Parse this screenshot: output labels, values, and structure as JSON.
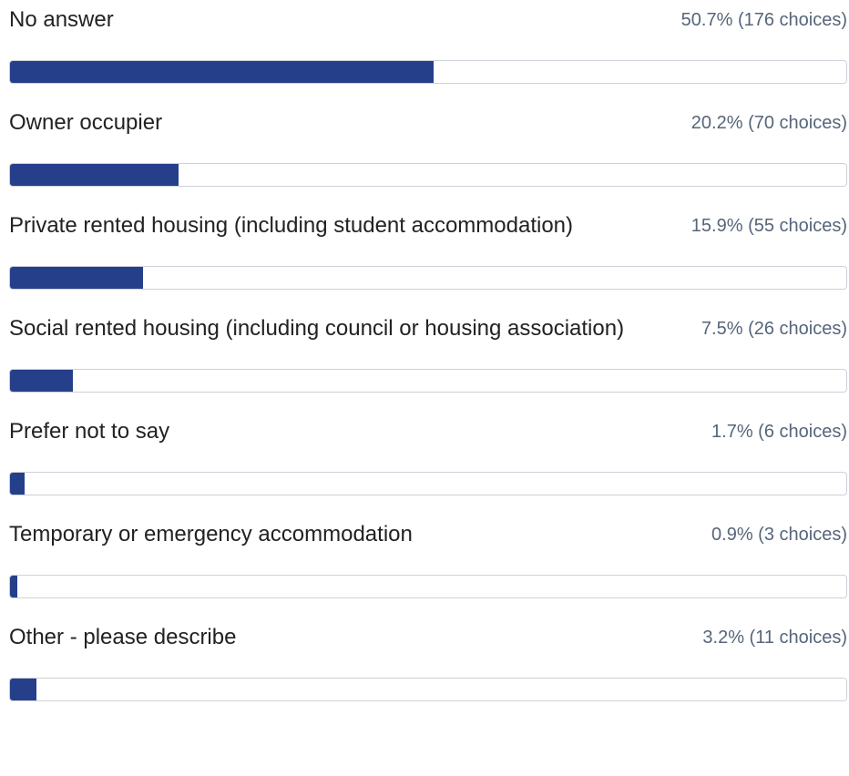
{
  "chart_data": {
    "type": "bar",
    "categories": [
      "No answer",
      "Owner occupier",
      "Private rented housing (including student accommodation)",
      "Social rented housing (including council or housing association)",
      "Prefer not to say",
      "Temporary or emergency accommodation",
      "Other - please describe"
    ],
    "values": [
      50.7,
      20.2,
      15.9,
      7.5,
      1.7,
      0.9,
      3.2
    ],
    "value_labels": [
      "50.7% (176 choices)",
      "20.2% (70 choices)",
      "15.9% (55 choices)",
      "7.5% (26 choices)",
      "1.7% (6 choices)",
      "0.9% (3 choices)",
      "3.2% (11 choices)"
    ],
    "color": "#263f8b",
    "xlim": [
      0,
      100
    ]
  }
}
